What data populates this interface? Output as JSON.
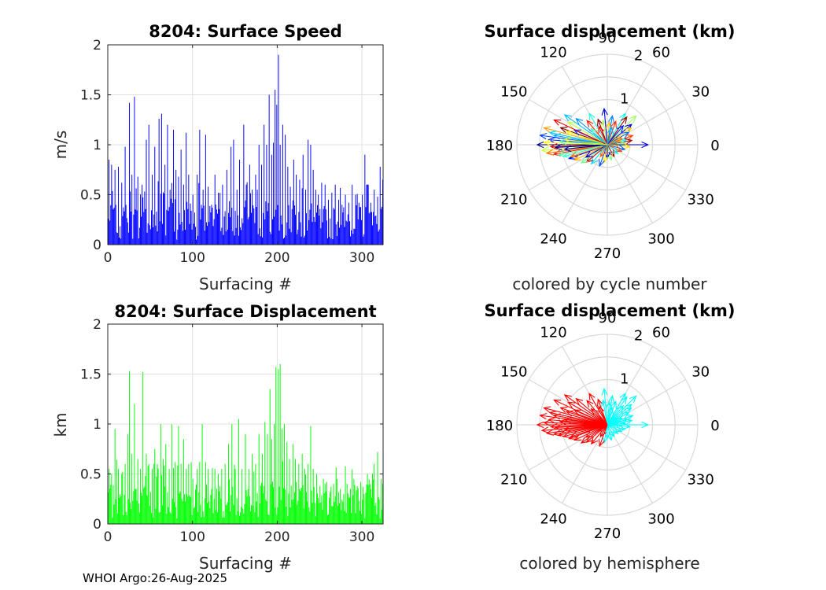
{
  "footer": "WHOI Argo:26-Aug-2025",
  "colors": {
    "speed_bars": "#0000ff",
    "displacement_bars": "#00ff00",
    "hemisphere_a": "#ff0000",
    "hemisphere_b": "#00ffff",
    "grid": "#d9d9d9",
    "axis": "#262626"
  },
  "chart_data": [
    {
      "type": "bar",
      "title": "8204: Surface Speed",
      "xlabel": "Surfacing #",
      "ylabel": "m/s",
      "xlim": [
        0,
        325
      ],
      "ylim": [
        0,
        2
      ],
      "xticks": [
        "0",
        "100",
        "200",
        "300"
      ],
      "yticks": [
        "0",
        "0.5",
        "1",
        "1.5",
        "2"
      ],
      "n": 325,
      "peaks": [
        [
          1,
          0.85
        ],
        [
          4,
          0.8
        ],
        [
          8,
          0.75
        ],
        [
          12,
          0.78
        ],
        [
          16,
          0.62
        ],
        [
          20,
          0.98
        ],
        [
          25,
          1.42
        ],
        [
          28,
          0.7
        ],
        [
          31,
          1.48
        ],
        [
          35,
          0.68
        ],
        [
          40,
          0.6
        ],
        [
          45,
          1.05
        ],
        [
          48,
          1.2
        ],
        [
          52,
          0.7
        ],
        [
          55,
          0.98
        ],
        [
          60,
          1.26
        ],
        [
          63,
          1.31
        ],
        [
          67,
          0.8
        ],
        [
          70,
          1.2
        ],
        [
          73,
          0.55
        ],
        [
          77,
          1.15
        ],
        [
          80,
          0.75
        ],
        [
          83,
          0.68
        ],
        [
          86,
          0.95
        ],
        [
          89,
          0.6
        ],
        [
          92,
          1.12
        ],
        [
          95,
          0.7
        ],
        [
          100,
          0.5
        ],
        [
          105,
          0.7
        ],
        [
          108,
          1.15
        ],
        [
          112,
          0.55
        ],
        [
          115,
          1.1
        ],
        [
          118,
          0.58
        ],
        [
          122,
          0.4
        ],
        [
          126,
          0.7
        ],
        [
          130,
          0.52
        ],
        [
          135,
          0.6
        ],
        [
          140,
          0.75
        ],
        [
          145,
          0.98
        ],
        [
          148,
          1.05
        ],
        [
          152,
          0.55
        ],
        [
          155,
          0.85
        ],
        [
          160,
          1.2
        ],
        [
          163,
          0.6
        ],
        [
          167,
          0.8
        ],
        [
          170,
          0.55
        ],
        [
          174,
          0.7
        ],
        [
          178,
          1.0
        ],
        [
          181,
          0.8
        ],
        [
          184,
          1.2
        ],
        [
          187,
          1.0
        ],
        [
          190,
          1.5
        ],
        [
          193,
          0.9
        ],
        [
          195,
          1.02
        ],
        [
          197,
          1.55
        ],
        [
          199,
          1.4
        ],
        [
          201,
          1.9
        ],
        [
          203,
          1.0
        ],
        [
          206,
          1.2
        ],
        [
          209,
          1.1
        ],
        [
          212,
          0.78
        ],
        [
          215,
          0.58
        ],
        [
          219,
          0.85
        ],
        [
          222,
          0.7
        ],
        [
          226,
          0.65
        ],
        [
          230,
          0.9
        ],
        [
          233,
          0.55
        ],
        [
          236,
          1.05
        ],
        [
          239,
          1.0
        ],
        [
          242,
          0.75
        ],
        [
          245,
          0.55
        ],
        [
          248,
          0.5
        ],
        [
          252,
          0.62
        ],
        [
          256,
          0.6
        ],
        [
          260,
          0.45
        ],
        [
          264,
          0.52
        ],
        [
          268,
          0.6
        ],
        [
          272,
          0.45
        ],
        [
          276,
          0.4
        ],
        [
          280,
          0.5
        ],
        [
          284,
          0.42
        ],
        [
          288,
          0.6
        ],
        [
          292,
          0.5
        ],
        [
          296,
          0.42
        ],
        [
          300,
          0.5
        ],
        [
          303,
          0.9
        ],
        [
          307,
          0.6
        ],
        [
          310,
          0.42
        ],
        [
          314,
          0.55
        ],
        [
          318,
          0.48
        ],
        [
          321,
          0.78
        ],
        [
          324,
          0.65
        ]
      ],
      "series": [
        {
          "name": "Surface speed",
          "color": "#0000ff"
        }
      ]
    },
    {
      "type": "bar",
      "title": "8204: Surface Displacement",
      "xlabel": "Surfacing #",
      "ylabel": "km",
      "xlim": [
        0,
        325
      ],
      "ylim": [
        0,
        2
      ],
      "xticks": [
        "0",
        "100",
        "200",
        "300"
      ],
      "yticks": [
        "0",
        "0.5",
        "1",
        "1.5",
        "2"
      ],
      "n": 325,
      "peaks": [
        [
          1,
          0.55
        ],
        [
          4,
          0.5
        ],
        [
          8,
          0.95
        ],
        [
          12,
          0.55
        ],
        [
          16,
          0.5
        ],
        [
          20,
          0.6
        ],
        [
          23,
          0.9
        ],
        [
          25,
          1.53
        ],
        [
          28,
          0.7
        ],
        [
          31,
          1.2
        ],
        [
          35,
          0.65
        ],
        [
          38,
          0.55
        ],
        [
          41,
          1.52
        ],
        [
          45,
          0.7
        ],
        [
          48,
          0.6
        ],
        [
          52,
          0.55
        ],
        [
          55,
          0.75
        ],
        [
          58,
          0.6
        ],
        [
          62,
          1.0
        ],
        [
          65,
          0.65
        ],
        [
          68,
          0.8
        ],
        [
          72,
          0.55
        ],
        [
          75,
          1.0
        ],
        [
          79,
          0.62
        ],
        [
          83,
          0.98
        ],
        [
          86,
          0.6
        ],
        [
          89,
          0.85
        ],
        [
          92,
          0.55
        ],
        [
          95,
          0.6
        ],
        [
          100,
          0.45
        ],
        [
          105,
          0.55
        ],
        [
          108,
          0.62
        ],
        [
          111,
          1.0
        ],
        [
          115,
          0.62
        ],
        [
          118,
          0.55
        ],
        [
          122,
          0.35
        ],
        [
          126,
          0.55
        ],
        [
          130,
          0.5
        ],
        [
          134,
          0.55
        ],
        [
          138,
          0.6
        ],
        [
          142,
          0.8
        ],
        [
          146,
          1.0
        ],
        [
          150,
          0.55
        ],
        [
          154,
          1.05
        ],
        [
          158,
          0.55
        ],
        [
          162,
          0.9
        ],
        [
          166,
          0.55
        ],
        [
          170,
          0.7
        ],
        [
          174,
          0.6
        ],
        [
          178,
          0.9
        ],
        [
          182,
          0.7
        ],
        [
          185,
          1.02
        ],
        [
          188,
          0.9
        ],
        [
          191,
          1.35
        ],
        [
          193,
          0.85
        ],
        [
          196,
          1.0
        ],
        [
          198,
          1.57
        ],
        [
          201,
          1.55
        ],
        [
          203,
          1.6
        ],
        [
          205,
          0.95
        ],
        [
          208,
          1.0
        ],
        [
          211,
          0.82
        ],
        [
          214,
          0.65
        ],
        [
          218,
          0.8
        ],
        [
          221,
          0.65
        ],
        [
          225,
          0.6
        ],
        [
          229,
          0.7
        ],
        [
          232,
          0.55
        ],
        [
          236,
          0.6
        ],
        [
          239,
          0.98
        ],
        [
          242,
          0.55
        ],
        [
          246,
          0.5
        ],
        [
          250,
          0.38
        ],
        [
          254,
          0.45
        ],
        [
          258,
          0.42
        ],
        [
          262,
          0.32
        ],
        [
          266,
          0.4
        ],
        [
          270,
          0.45
        ],
        [
          274,
          0.35
        ],
        [
          278,
          0.3
        ],
        [
          282,
          0.4
        ],
        [
          286,
          0.35
        ],
        [
          290,
          0.45
        ],
        [
          294,
          0.38
        ],
        [
          298,
          0.42
        ],
        [
          302,
          0.3
        ],
        [
          306,
          0.5
        ],
        [
          310,
          0.35
        ],
        [
          314,
          0.6
        ],
        [
          318,
          0.72
        ],
        [
          322,
          0.45
        ],
        [
          324,
          0.4
        ]
      ],
      "series": [
        {
          "name": "Surface displacement",
          "color": "#00ff00"
        }
      ]
    },
    {
      "type": "polar",
      "title": "Surface displacement (km)",
      "caption": "colored by cycle number",
      "rlim": [
        0,
        2
      ],
      "rticks": [
        "1",
        "2"
      ],
      "angle_ticks": [
        "0",
        "30",
        "60",
        "90",
        "120",
        "150",
        "180",
        "210",
        "240",
        "270",
        "300",
        "330"
      ],
      "color_mode": "cycle",
      "arrows": [
        [
          180,
          1.55
        ],
        [
          185,
          1.45
        ],
        [
          175,
          1.3
        ],
        [
          165,
          1.45
        ],
        [
          170,
          1.2
        ],
        [
          190,
          1.2
        ],
        [
          195,
          1.0
        ],
        [
          160,
          1.1
        ],
        [
          150,
          1.0
        ],
        [
          200,
          0.9
        ],
        [
          205,
          0.8
        ],
        [
          140,
          0.9
        ],
        [
          130,
          0.7
        ],
        [
          120,
          0.8
        ],
        [
          110,
          0.6
        ],
        [
          100,
          0.55
        ],
        [
          95,
          0.8
        ],
        [
          85,
          0.5
        ],
        [
          80,
          0.65
        ],
        [
          70,
          0.55
        ],
        [
          60,
          0.8
        ],
        [
          55,
          0.75
        ],
        [
          45,
          0.9
        ],
        [
          40,
          0.7
        ],
        [
          35,
          0.65
        ],
        [
          30,
          0.55
        ],
        [
          20,
          0.6
        ],
        [
          15,
          0.45
        ],
        [
          10,
          0.55
        ],
        [
          5,
          0.4
        ],
        [
          0,
          0.9
        ],
        [
          355,
          0.5
        ],
        [
          345,
          0.4
        ],
        [
          335,
          0.35
        ],
        [
          320,
          0.3
        ],
        [
          300,
          0.3
        ],
        [
          285,
          0.35
        ],
        [
          270,
          0.3
        ],
        [
          260,
          0.4
        ],
        [
          250,
          0.5
        ],
        [
          240,
          0.3
        ],
        [
          230,
          0.55
        ],
        [
          220,
          0.6
        ],
        [
          215,
          0.7
        ],
        [
          210,
          0.55
        ],
        [
          178,
          1.4
        ],
        [
          172,
          1.5
        ],
        [
          188,
          1.35
        ],
        [
          168,
          1.3
        ],
        [
          182,
          1.25
        ],
        [
          176,
          1.05
        ],
        [
          186,
          0.95
        ],
        [
          162,
          0.95
        ],
        [
          156,
          0.8
        ],
        [
          198,
          0.85
        ],
        [
          145,
          1.15
        ],
        [
          155,
          1.3
        ],
        [
          192,
          1.1
        ],
        [
          183,
          1.15
        ],
        [
          173,
          0.95
        ],
        [
          50,
          0.55
        ],
        [
          25,
          0.35
        ],
        [
          75,
          0.4
        ],
        [
          115,
          0.45
        ],
        [
          135,
          0.5
        ]
      ]
    },
    {
      "type": "polar",
      "title": "Surface displacement (km)",
      "caption": "colored by hemisphere",
      "rlim": [
        0,
        2
      ],
      "rticks": [
        "1",
        "2"
      ],
      "angle_ticks": [
        "0",
        "30",
        "60",
        "90",
        "120",
        "150",
        "180",
        "210",
        "240",
        "270",
        "300",
        "330"
      ],
      "color_mode": "hemisphere",
      "arrows": [
        [
          180,
          1.55
        ],
        [
          185,
          1.45
        ],
        [
          175,
          1.3
        ],
        [
          165,
          1.45
        ],
        [
          170,
          1.2
        ],
        [
          190,
          1.2
        ],
        [
          195,
          1.0
        ],
        [
          160,
          1.1
        ],
        [
          150,
          1.0
        ],
        [
          200,
          0.9
        ],
        [
          205,
          0.8
        ],
        [
          140,
          0.9
        ],
        [
          130,
          0.7
        ],
        [
          120,
          0.8
        ],
        [
          110,
          0.6
        ],
        [
          100,
          0.55
        ],
        [
          95,
          0.8
        ],
        [
          85,
          0.5
        ],
        [
          80,
          0.65
        ],
        [
          70,
          0.55
        ],
        [
          60,
          0.8
        ],
        [
          55,
          0.75
        ],
        [
          45,
          0.9
        ],
        [
          40,
          0.7
        ],
        [
          35,
          0.65
        ],
        [
          30,
          0.55
        ],
        [
          20,
          0.6
        ],
        [
          15,
          0.45
        ],
        [
          10,
          0.55
        ],
        [
          5,
          0.4
        ],
        [
          0,
          0.9
        ],
        [
          355,
          0.5
        ],
        [
          345,
          0.4
        ],
        [
          335,
          0.35
        ],
        [
          320,
          0.3
        ],
        [
          300,
          0.3
        ],
        [
          285,
          0.35
        ],
        [
          270,
          0.3
        ],
        [
          260,
          0.4
        ],
        [
          250,
          0.5
        ],
        [
          240,
          0.3
        ],
        [
          230,
          0.55
        ],
        [
          220,
          0.6
        ],
        [
          215,
          0.7
        ],
        [
          210,
          0.55
        ],
        [
          178,
          1.4
        ],
        [
          172,
          1.5
        ],
        [
          188,
          1.35
        ],
        [
          168,
          1.3
        ],
        [
          182,
          1.25
        ],
        [
          176,
          1.05
        ],
        [
          186,
          0.95
        ],
        [
          162,
          0.95
        ],
        [
          156,
          0.8
        ],
        [
          198,
          0.85
        ],
        [
          145,
          1.15
        ],
        [
          155,
          1.3
        ],
        [
          192,
          1.1
        ],
        [
          183,
          1.15
        ],
        [
          173,
          0.95
        ],
        [
          50,
          0.55
        ],
        [
          25,
          0.35
        ],
        [
          75,
          0.4
        ],
        [
          115,
          0.45
        ],
        [
          135,
          0.5
        ]
      ]
    }
  ]
}
